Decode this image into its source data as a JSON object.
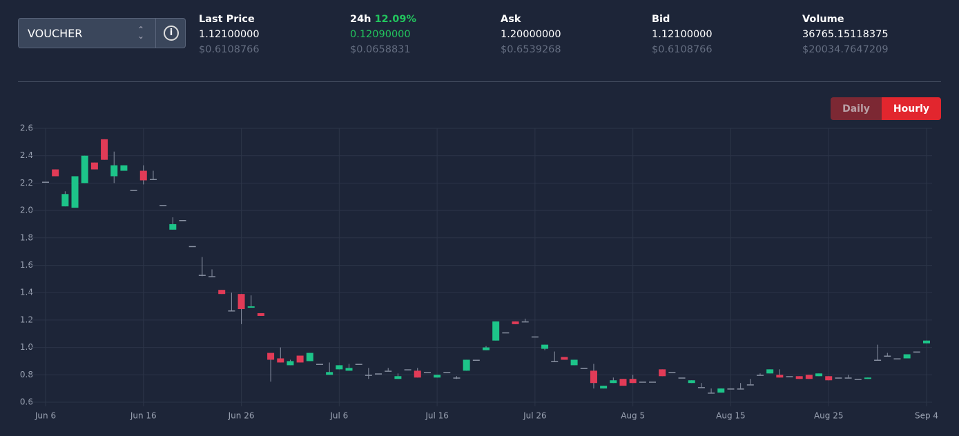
{
  "header": {
    "selector": "VOUCHER",
    "stats": [
      {
        "label": "Last Price",
        "value": "1.12100000",
        "usd": "$0.6108766"
      },
      {
        "label": "24h",
        "change": "12.09%",
        "value": "0.12090000",
        "usd": "$0.0658831"
      },
      {
        "label": "Ask",
        "value": "1.20000000",
        "usd": "$0.6539268"
      },
      {
        "label": "Bid",
        "value": "1.12100000",
        "usd": "$0.6108766"
      },
      {
        "label": "Volume",
        "value": "36765.15118375",
        "usd": "$20034.7647209"
      }
    ],
    "buttons": [
      "Daily",
      "Hourly"
    ]
  },
  "chart_data": {
    "type": "candlestick",
    "categories": [
      "Jun 6",
      null,
      null,
      null,
      null,
      null,
      null,
      null,
      null,
      null,
      "Jun 16",
      null,
      null,
      null,
      null,
      null,
      null,
      null,
      null,
      null,
      "Jun 26",
      null,
      null,
      null,
      null,
      null,
      null,
      null,
      null,
      null,
      "Jul 6",
      null,
      null,
      null,
      null,
      null,
      null,
      null,
      null,
      null,
      "Jul 16",
      null,
      null,
      null,
      null,
      null,
      null,
      null,
      null,
      null,
      "Jul 26",
      null,
      null,
      null,
      null,
      null,
      null,
      null,
      null,
      null,
      "Aug 5",
      null,
      null,
      null,
      null,
      null,
      null,
      null,
      null,
      null,
      "Aug 15",
      null,
      null,
      null,
      null,
      null,
      null,
      null,
      null,
      null,
      "Aug 25",
      null,
      null,
      null,
      null,
      null,
      null,
      null,
      null,
      null,
      "Sep 4"
    ],
    "open": [
      2.21,
      2.3,
      2.03,
      2.02,
      2.2,
      2.35,
      2.52,
      2.25,
      2.29,
      2.15,
      2.29,
      2.23,
      2.04,
      1.86,
      1.93,
      1.74,
      1.53,
      1.52,
      1.42,
      1.27,
      1.39,
      1.29,
      1.25,
      0.96,
      0.92,
      0.87,
      0.94,
      0.9,
      0.88,
      0.8,
      0.84,
      0.83,
      0.88,
      0.8,
      0.81,
      0.83,
      0.77,
      0.84,
      0.83,
      0.82,
      0.78,
      0.82,
      0.78,
      0.83,
      0.91,
      0.98,
      1.05,
      1.11,
      1.19,
      1.19,
      1.08,
      0.99,
      0.9,
      0.93,
      0.87,
      0.85,
      0.83,
      0.7,
      0.74,
      0.77,
      0.77,
      0.75,
      0.75,
      0.84,
      0.82,
      0.78,
      0.74,
      0.71,
      0.67,
      0.67,
      0.7,
      0.7,
      0.73,
      0.8,
      0.81,
      0.8,
      0.79,
      0.79,
      0.8,
      0.79,
      0.79,
      0.78,
      0.78,
      0.77,
      0.77,
      0.91,
      0.94,
      0.92,
      0.92,
      0.97,
      1.03
    ],
    "high": [
      2.21,
      2.3,
      2.14,
      2.25,
      2.4,
      2.35,
      2.52,
      2.43,
      2.33,
      2.15,
      2.33,
      2.29,
      2.04,
      1.95,
      1.93,
      1.74,
      1.66,
      1.57,
      1.42,
      1.4,
      1.39,
      1.38,
      1.25,
      0.96,
      1.0,
      0.91,
      0.94,
      0.96,
      0.88,
      0.89,
      0.87,
      0.88,
      0.88,
      0.85,
      0.81,
      0.85,
      0.81,
      0.84,
      0.85,
      0.82,
      0.8,
      0.82,
      0.79,
      0.91,
      0.91,
      1.01,
      1.19,
      1.11,
      1.19,
      1.21,
      1.08,
      1.02,
      0.97,
      0.93,
      0.91,
      0.85,
      0.88,
      0.72,
      0.78,
      0.77,
      0.8,
      0.75,
      0.75,
      0.84,
      0.82,
      0.78,
      0.76,
      0.74,
      0.7,
      0.7,
      0.7,
      0.74,
      0.77,
      0.81,
      0.84,
      0.84,
      0.79,
      0.79,
      0.8,
      0.81,
      0.79,
      0.78,
      0.8,
      0.77,
      0.78,
      1.02,
      0.96,
      0.92,
      0.95,
      0.97,
      1.05
    ],
    "low": [
      2.21,
      2.25,
      2.03,
      2.02,
      2.2,
      2.3,
      2.37,
      2.2,
      2.29,
      2.15,
      2.19,
      2.23,
      2.04,
      1.86,
      1.93,
      1.74,
      1.52,
      1.52,
      1.39,
      1.27,
      1.17,
      1.29,
      1.23,
      0.75,
      0.89,
      0.87,
      0.89,
      0.9,
      0.88,
      0.8,
      0.84,
      0.83,
      0.88,
      0.77,
      0.81,
      0.83,
      0.77,
      0.84,
      0.78,
      0.82,
      0.78,
      0.82,
      0.77,
      0.83,
      0.91,
      0.98,
      1.05,
      1.11,
      1.17,
      1.19,
      1.08,
      0.98,
      0.9,
      0.91,
      0.87,
      0.85,
      0.7,
      0.7,
      0.74,
      0.72,
      0.74,
      0.75,
      0.75,
      0.79,
      0.82,
      0.78,
      0.74,
      0.71,
      0.67,
      0.67,
      0.7,
      0.7,
      0.73,
      0.8,
      0.81,
      0.78,
      0.79,
      0.77,
      0.77,
      0.79,
      0.76,
      0.78,
      0.78,
      0.77,
      0.77,
      0.91,
      0.94,
      0.92,
      0.92,
      0.97,
      1.03
    ],
    "close": [
      2.21,
      2.25,
      2.12,
      2.25,
      2.4,
      2.3,
      2.37,
      2.33,
      2.33,
      2.15,
      2.22,
      2.23,
      2.04,
      1.9,
      1.93,
      1.74,
      1.53,
      1.52,
      1.39,
      1.27,
      1.28,
      1.3,
      1.23,
      0.91,
      0.89,
      0.9,
      0.89,
      0.96,
      0.88,
      0.82,
      0.87,
      0.85,
      0.88,
      0.8,
      0.81,
      0.83,
      0.79,
      0.84,
      0.78,
      0.82,
      0.8,
      0.82,
      0.78,
      0.91,
      0.91,
      1.0,
      1.19,
      1.11,
      1.17,
      1.19,
      1.08,
      1.02,
      0.9,
      0.91,
      0.91,
      0.85,
      0.74,
      0.72,
      0.76,
      0.72,
      0.74,
      0.75,
      0.75,
      0.79,
      0.82,
      0.78,
      0.76,
      0.71,
      0.67,
      0.7,
      0.7,
      0.7,
      0.73,
      0.8,
      0.84,
      0.78,
      0.79,
      0.77,
      0.77,
      0.81,
      0.76,
      0.78,
      0.78,
      0.77,
      0.78,
      0.91,
      0.94,
      0.92,
      0.95,
      0.97,
      1.05
    ],
    "up_color": "#1dc489",
    "down_color": "#e23b57",
    "flat_color": "#8a92a3",
    "ylim": [
      0.6,
      2.6
    ],
    "yticks": [
      0.6,
      0.8,
      {
        "value": 1,
        "label": "1.0"
      },
      1.2,
      1.4,
      1.6,
      1.8,
      {
        "value": 2,
        "label": "2.0"
      },
      2.2,
      2.4,
      2.6
    ],
    "grid": true
  }
}
